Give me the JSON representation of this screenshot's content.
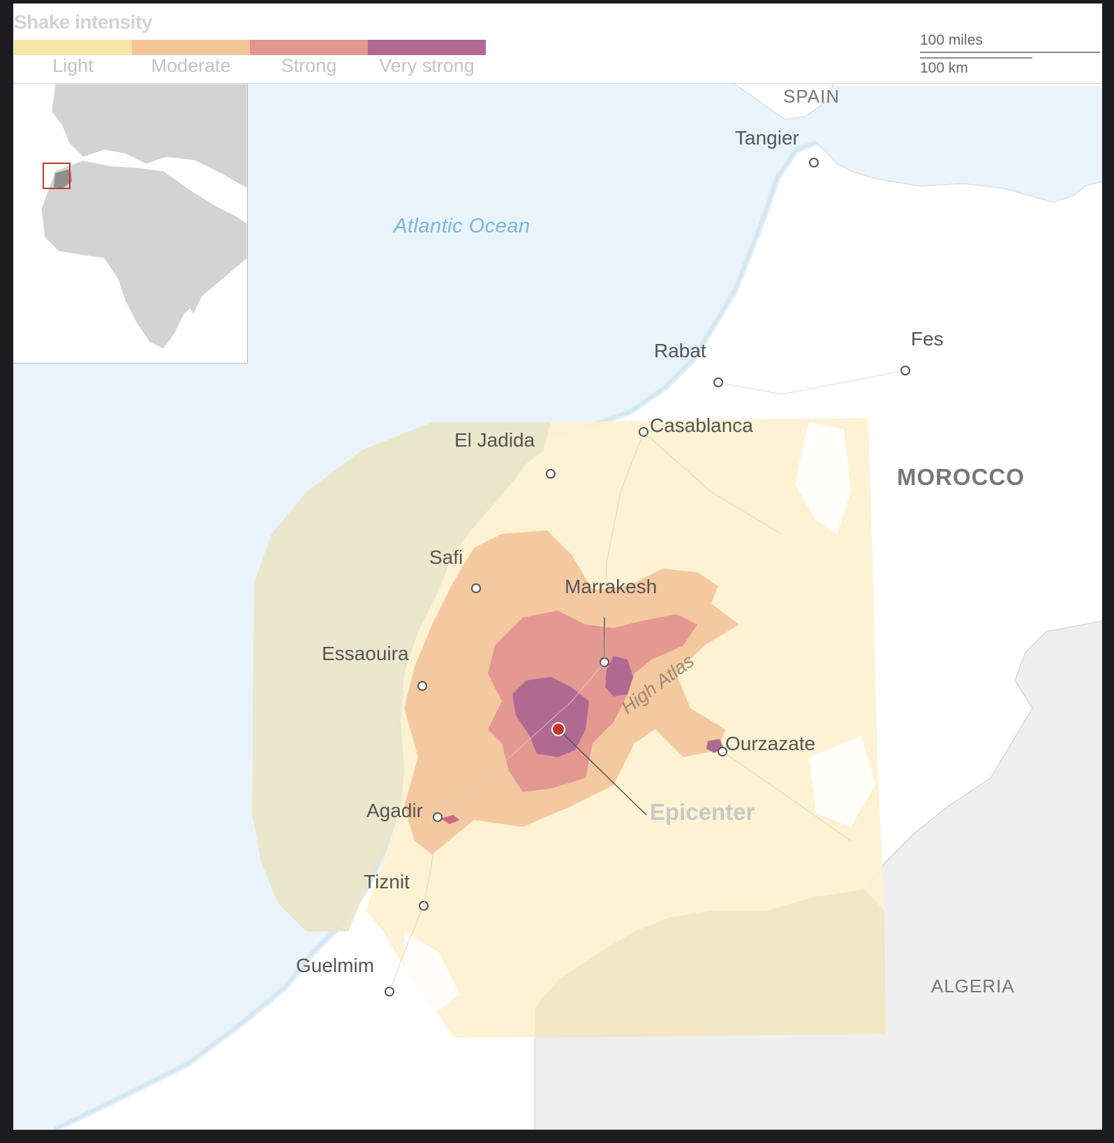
{
  "legend": {
    "title": "Shake intensity",
    "items": [
      {
        "label": "Light",
        "color": "#f7e4a8"
      },
      {
        "label": "Moderate",
        "color": "#f4c49a"
      },
      {
        "label": "Strong",
        "color": "#e29690"
      },
      {
        "label": "Very strong",
        "color": "#b06a92"
      }
    ]
  },
  "scale": {
    "miles": "100 miles",
    "km": "100 km"
  },
  "labels": {
    "spain": "SPAIN",
    "tangier": "Tangier",
    "atlantic": "Atlantic Ocean",
    "rabat": "Rabat",
    "fes": "Fes",
    "casablanca": "Casablanca",
    "el_jadida": "El Jadida",
    "morocco": "MOROCCO",
    "safi": "Safi",
    "marrakesh": "Marrakesh",
    "essaouira": "Essaouira",
    "high_atlas": "High Atlas",
    "ourzazate": "Ourzazate",
    "agadir": "Agadir",
    "epicenter": "Epicenter",
    "tiznit": "Tiznit",
    "guelmim": "Guelmim",
    "algeria": "ALGERIA"
  },
  "colors": {
    "ocean": "#e8f3fb",
    "land": "#ffffff",
    "algeria": "#efefef",
    "light_zone": "#fdf1cf",
    "offshore_zone": "#ebe6ca",
    "epicenter": "#c0392b"
  }
}
